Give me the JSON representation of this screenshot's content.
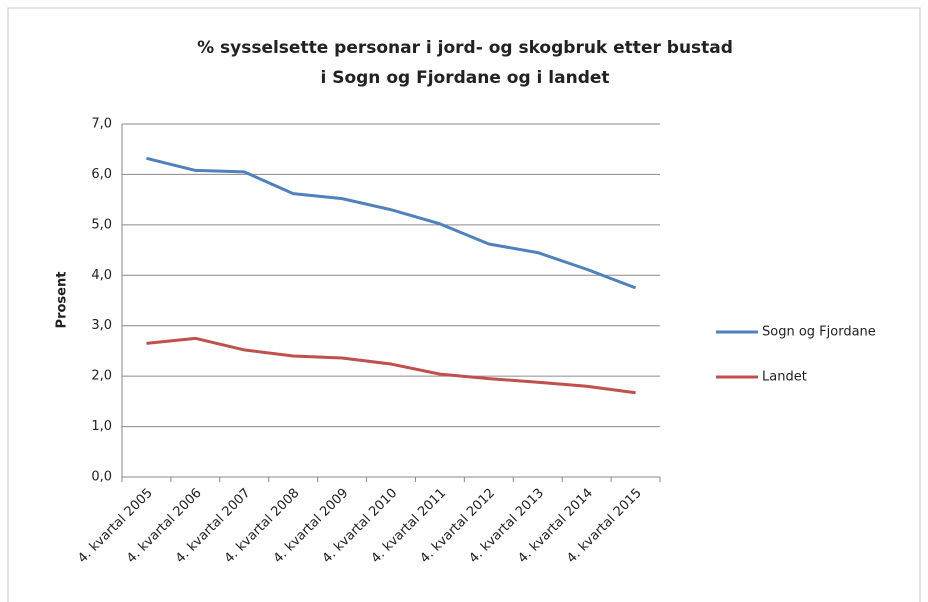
{
  "chart_data": {
    "type": "line",
    "title": [
      "% sysselsette personar i jord- og skogbruk etter bustad",
      "i Sogn og Fjordane og i landet"
    ],
    "y_label": "Prosent",
    "categories": [
      "4. kvartal 2005",
      "4. kvartal 2006",
      "4. kvartal 2007",
      "4. kvartal 2008",
      "4. kvartal 2009",
      "4. kvartal 2010",
      "4. kvartal 2011",
      "4. kvartal 2012",
      "4. kvartal 2013",
      "4. kvartal 2014",
      "4. kvartal 2015"
    ],
    "series": [
      {
        "name": "Sogn og Fjordane",
        "color": "#4f81bd",
        "values": [
          6.32,
          6.08,
          6.05,
          5.62,
          5.52,
          5.3,
          5.02,
          4.62,
          4.45,
          4.12,
          3.75
        ]
      },
      {
        "name": "Landet",
        "color": "#c0504d",
        "values": [
          2.65,
          2.75,
          2.52,
          2.4,
          2.36,
          2.24,
          2.04,
          1.95,
          1.88,
          1.8,
          1.67
        ]
      }
    ],
    "ylim": [
      0,
      7
    ],
    "yticks": [
      {
        "value": 0,
        "label": "0,0"
      },
      {
        "value": 1,
        "label": "1,0"
      },
      {
        "value": 2,
        "label": "2,0"
      },
      {
        "value": 3,
        "label": "3,0"
      },
      {
        "value": 4,
        "label": "4,0"
      },
      {
        "value": 5,
        "label": "5,0"
      },
      {
        "value": 6,
        "label": "6,0"
      },
      {
        "value": 7,
        "label": "7,0"
      }
    ],
    "grid": true,
    "legend": "right"
  }
}
